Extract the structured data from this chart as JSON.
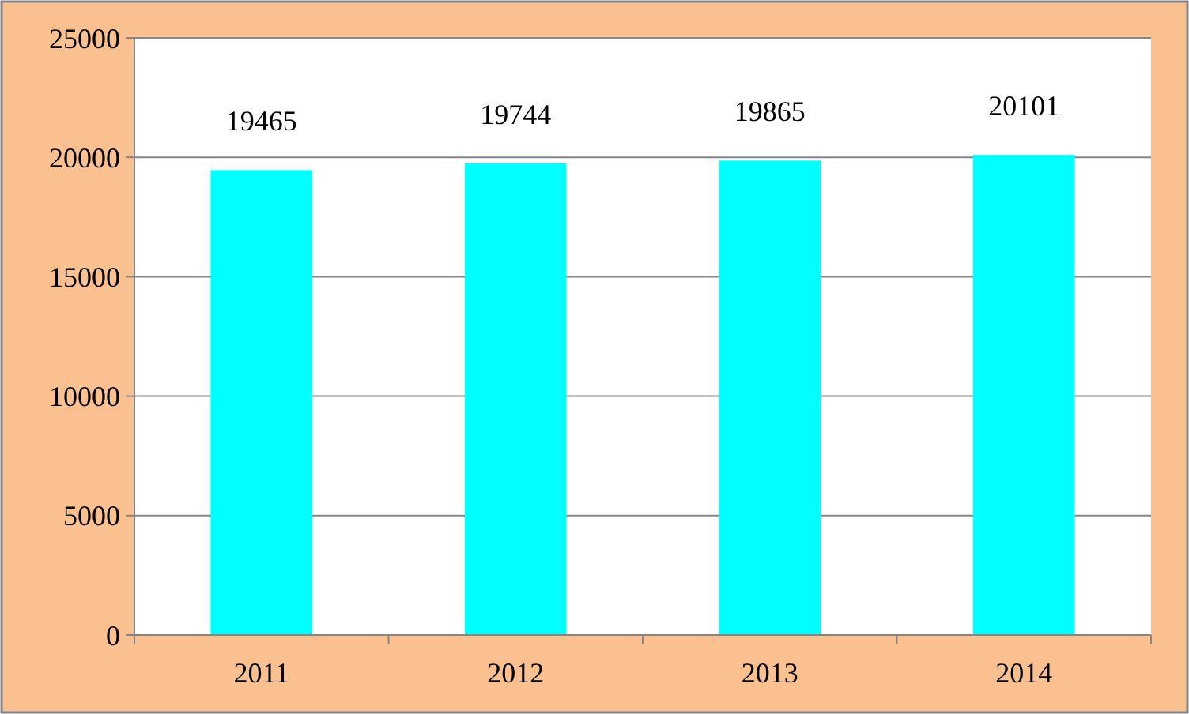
{
  "chart_data": {
    "type": "bar",
    "categories": [
      "2011",
      "2012",
      "2013",
      "2014"
    ],
    "values": [
      19465,
      19744,
      19865,
      20101
    ],
    "color": "#00ffff",
    "ylim": [
      0,
      25000
    ],
    "yticks": [
      0,
      5000,
      10000,
      15000,
      20000,
      25000
    ],
    "grid": "y",
    "data_labels": true
  }
}
